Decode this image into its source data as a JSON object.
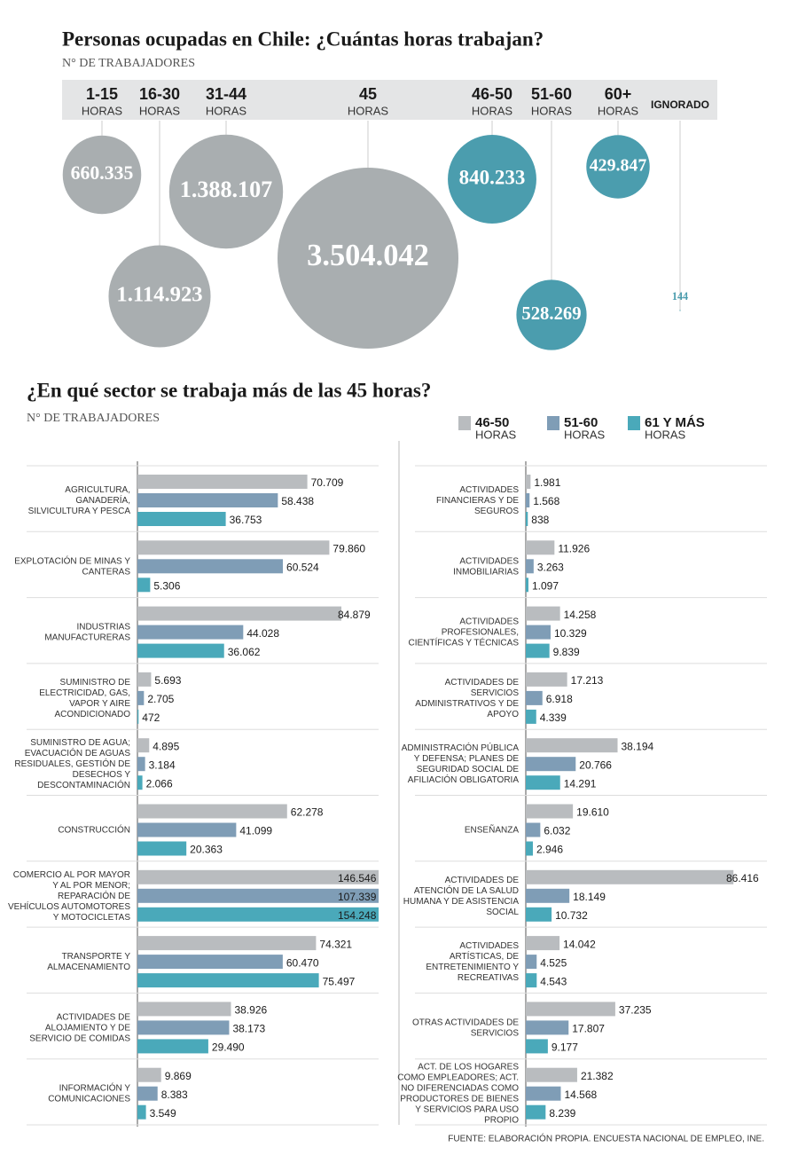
{
  "chart_data": [
    {
      "type": "bubble",
      "title": "Personas ocupadas en Chile: ¿Cuántas horas trabajan?",
      "subtitle": "N° DE TRABAJADORES",
      "categories": [
        "1-15",
        "16-30",
        "31-44",
        "45",
        "46-50",
        "51-60",
        "60+",
        "IGNORADO"
      ],
      "unit_labels": [
        "HORAS",
        "HORAS",
        "HORAS",
        "HORAS",
        "HORAS",
        "HORAS",
        "HORAS",
        null
      ],
      "values": [
        660335,
        1114923,
        1388107,
        3504042,
        840233,
        528269,
        429847,
        144
      ],
      "value_labels": [
        "660.335",
        "1.114.923",
        "1.388.107",
        "3.504.042",
        "840.233",
        "528.269",
        "429.847",
        "144"
      ],
      "colors": [
        "#a9aeb0",
        "#a9aeb0",
        "#a9aeb0",
        "#a9aeb0",
        "#4b9dae",
        "#4b9dae",
        "#4b9dae",
        "#4b9dae"
      ]
    },
    {
      "type": "hbar",
      "title": "¿En qué sector se trabaja más de las 45 horas?",
      "subtitle": "N° DE TRABAJADORES",
      "legend_unit": "HORAS",
      "source": "FUENTE: ELABORACIÓN PROPIA. ENCUESTA NACIONAL DE EMPLEO, INE.",
      "categories": [
        "AGRICULTURA, GANADERÍA, SILVICULTURA Y PESCA",
        "EXPLOTACIÓN DE MINAS Y CANTERAS",
        "INDUSTRIAS MANUFACTURERAS",
        "SUMINISTRO DE ELECTRICIDAD, GAS, VAPOR Y AIRE ACONDICIONADO",
        "SUMINISTRO DE AGUA; EVACUACIÓN DE AGUAS RESIDUALES, GESTIÓN DE DESECHOS Y DESCONTAMINACIÓN",
        "CONSTRUCCIÓN",
        "COMERCIO AL POR MAYOR Y AL POR MENOR; REPARACIÓN DE VEHÍCULOS AUTOMOTORES Y MOTOCICLETAS",
        "TRANSPORTE Y ALMACENAMIENTO",
        "ACTIVIDADES DE ALOJAMIENTO Y DE SERVICIO DE COMIDAS",
        "INFORMACIÓN Y COMUNICACIONES",
        "ACTIVIDADES FINANCIERAS Y DE SEGUROS",
        "ACTIVIDADES INMOBILIARIAS",
        "ACTIVIDADES PROFESIONALES, CIENTÍFICAS Y TÉCNICAS",
        "ACTIVIDADES DE SERVICIOS ADMINISTRATIVOS Y DE APOYO",
        "ADMINISTRACIÓN PÚBLICA Y DEFENSA; PLANES DE SEGURIDAD SOCIAL DE AFILIACIÓN OBLIGATORIA",
        "ENSEÑANZA",
        "ACTIVIDADES DE ATENCIÓN DE LA SALUD HUMANA Y DE ASISTENCIA SOCIAL",
        "ACTIVIDADES ARTÍSTICAS, DE ENTRETENIMIENTO Y RECREATIVAS",
        "OTRAS ACTIVIDADES DE SERVICIOS",
        "ACT. DE LOS HOGARES COMO EMPLEADORES; ACT. NO DIFERENCIADAS COMO PRODUCTORES DE BIENES Y SERVICIOS PARA USO PROPIO"
      ],
      "series": [
        {
          "name": "46-50",
          "color": "#b9bcbf",
          "values": [
            70709,
            79860,
            84879,
            5693,
            4895,
            62278,
            146546,
            74321,
            38926,
            9869,
            1981,
            11926,
            14258,
            17213,
            38194,
            19610,
            86416,
            14042,
            37235,
            21382
          ],
          "value_labels": [
            "70.709",
            "79.860",
            "84.879",
            "5.693",
            "4.895",
            "62.278",
            "146.546",
            "74.321",
            "38.926",
            "9.869",
            "1.981",
            "11.926",
            "14.258",
            "17.213",
            "38.194",
            "19.610",
            "86.416",
            "14.042",
            "37.235",
            "21.382"
          ]
        },
        {
          "name": "51-60",
          "color": "#7f9db6",
          "values": [
            58438,
            60524,
            44028,
            2705,
            3184,
            41099,
            107339,
            60470,
            38173,
            8383,
            1568,
            3263,
            10329,
            6918,
            20766,
            6032,
            18149,
            4525,
            17807,
            14568
          ],
          "value_labels": [
            "58.438",
            "60.524",
            "44.028",
            "2.705",
            "3.184",
            "41.099",
            "107.339",
            "60.470",
            "38.173",
            "8.383",
            "1.568",
            "3.263",
            "10.329",
            "6.918",
            "20.766",
            "6.032",
            "18.149",
            "4.525",
            "17.807",
            "14.568"
          ]
        },
        {
          "name": "61 Y MÁS",
          "color": "#4aa9ba",
          "values": [
            36753,
            5306,
            36062,
            472,
            2066,
            20363,
            154248,
            75497,
            29490,
            3549,
            838,
            1097,
            9839,
            4339,
            14291,
            2946,
            10732,
            4543,
            9177,
            8239
          ],
          "value_labels": [
            "36.753",
            "5.306",
            "36.062",
            "472",
            "2.066",
            "20.363",
            "154.248",
            "75.497",
            "29.490",
            "3.549",
            "838",
            "1.097",
            "9.839",
            "4.339",
            "14.291",
            "2.946",
            "10.732",
            "4.543",
            "9.177",
            "8.239"
          ]
        }
      ]
    }
  ]
}
